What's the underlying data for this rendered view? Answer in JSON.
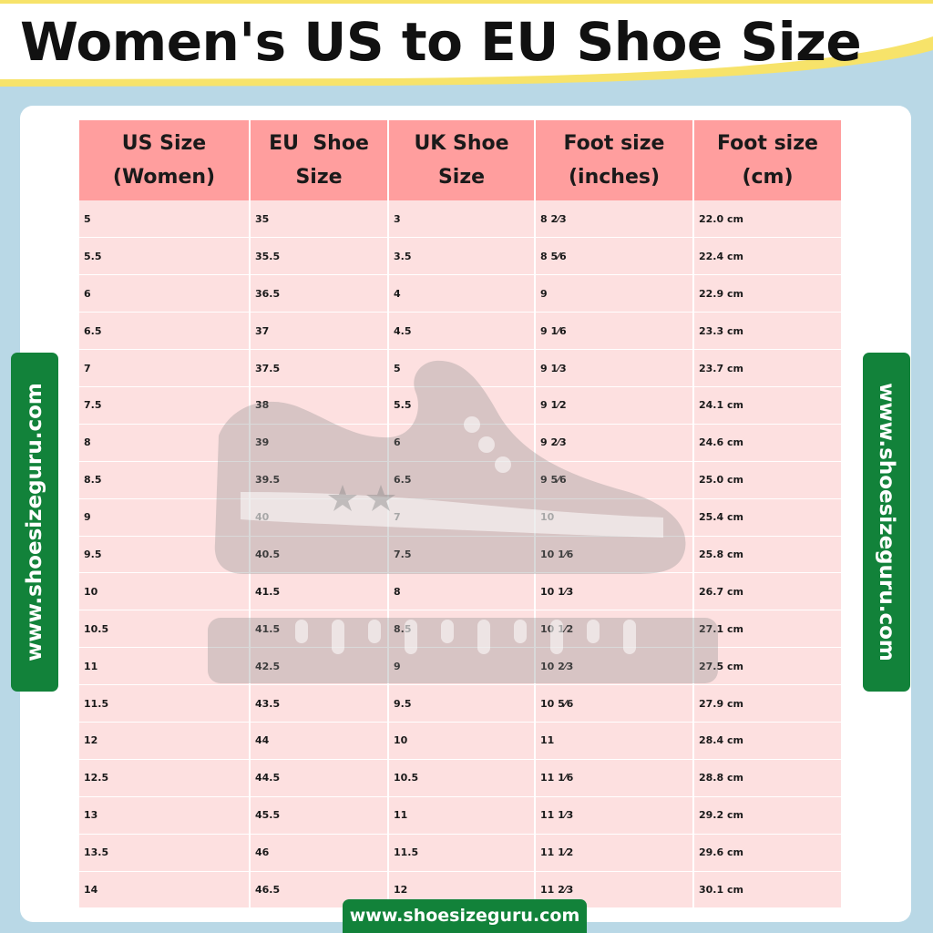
{
  "page": {
    "title": "Women's US to EU Shoe Size",
    "website": "www.shoesizeguru.com"
  },
  "colors": {
    "background": "#b9d8e6",
    "accent_yellow": "#f7e36a",
    "header_cell": "#ff9e9e",
    "body_cell": "#fde0e0",
    "badge_green": "#12823a",
    "watermark": "#8a8a8a"
  },
  "table": {
    "headers": [
      [
        "US Size",
        "(Women)"
      ],
      [
        "EU  Shoe",
        "Size"
      ],
      [
        "UK Shoe",
        "Size"
      ],
      [
        "Foot size",
        "(inches)"
      ],
      [
        "Foot size",
        "(cm)"
      ]
    ],
    "rows": [
      [
        "5",
        "35",
        "3",
        "8 2⁄3",
        "22.0 cm"
      ],
      [
        "5.5",
        "35.5",
        "3.5",
        "8 5⁄6",
        "22.4 cm"
      ],
      [
        "6",
        "36.5",
        "4",
        "9",
        "22.9 cm"
      ],
      [
        "6.5",
        "37",
        "4.5",
        "9 1⁄6",
        "23.3 cm"
      ],
      [
        "7",
        "37.5",
        "5",
        "9 1⁄3",
        "23.7 cm"
      ],
      [
        "7.5",
        "38",
        "5.5",
        "9 1⁄2",
        "24.1 cm"
      ],
      [
        "8",
        "39",
        "6",
        "9 2⁄3",
        "24.6 cm"
      ],
      [
        "8.5",
        "39.5",
        "6.5",
        "9 5⁄6",
        "25.0 cm"
      ],
      [
        "9",
        "40",
        "7",
        "10",
        "25.4 cm"
      ],
      [
        "9.5",
        "40.5",
        "7.5",
        "10 1⁄6",
        "25.8 cm"
      ],
      [
        "10",
        "41.5",
        "8",
        "10 1⁄3",
        "26.7 cm"
      ],
      [
        "10.5",
        "41.5",
        "8.5",
        "10 1⁄2",
        "27.1 cm"
      ],
      [
        "11",
        "42.5",
        "9",
        "10 2⁄3",
        "27.5 cm"
      ],
      [
        "11.5",
        "43.5",
        "9.5",
        "10 5⁄6",
        "27.9 cm"
      ],
      [
        "12",
        "44",
        "10",
        "11",
        "28.4 cm"
      ],
      [
        "12.5",
        "44.5",
        "10.5",
        "11 1⁄6",
        "28.8 cm"
      ],
      [
        "13",
        "45.5",
        "11",
        "11 1⁄3",
        "29.2 cm"
      ],
      [
        "13.5",
        "46",
        "11.5",
        "11 1⁄2",
        "29.6 cm"
      ],
      [
        "14",
        "46.5",
        "12",
        "11 2⁄3",
        "30.1 cm"
      ]
    ]
  },
  "icons": {
    "watermark": "shoe-on-ruler-icon"
  }
}
